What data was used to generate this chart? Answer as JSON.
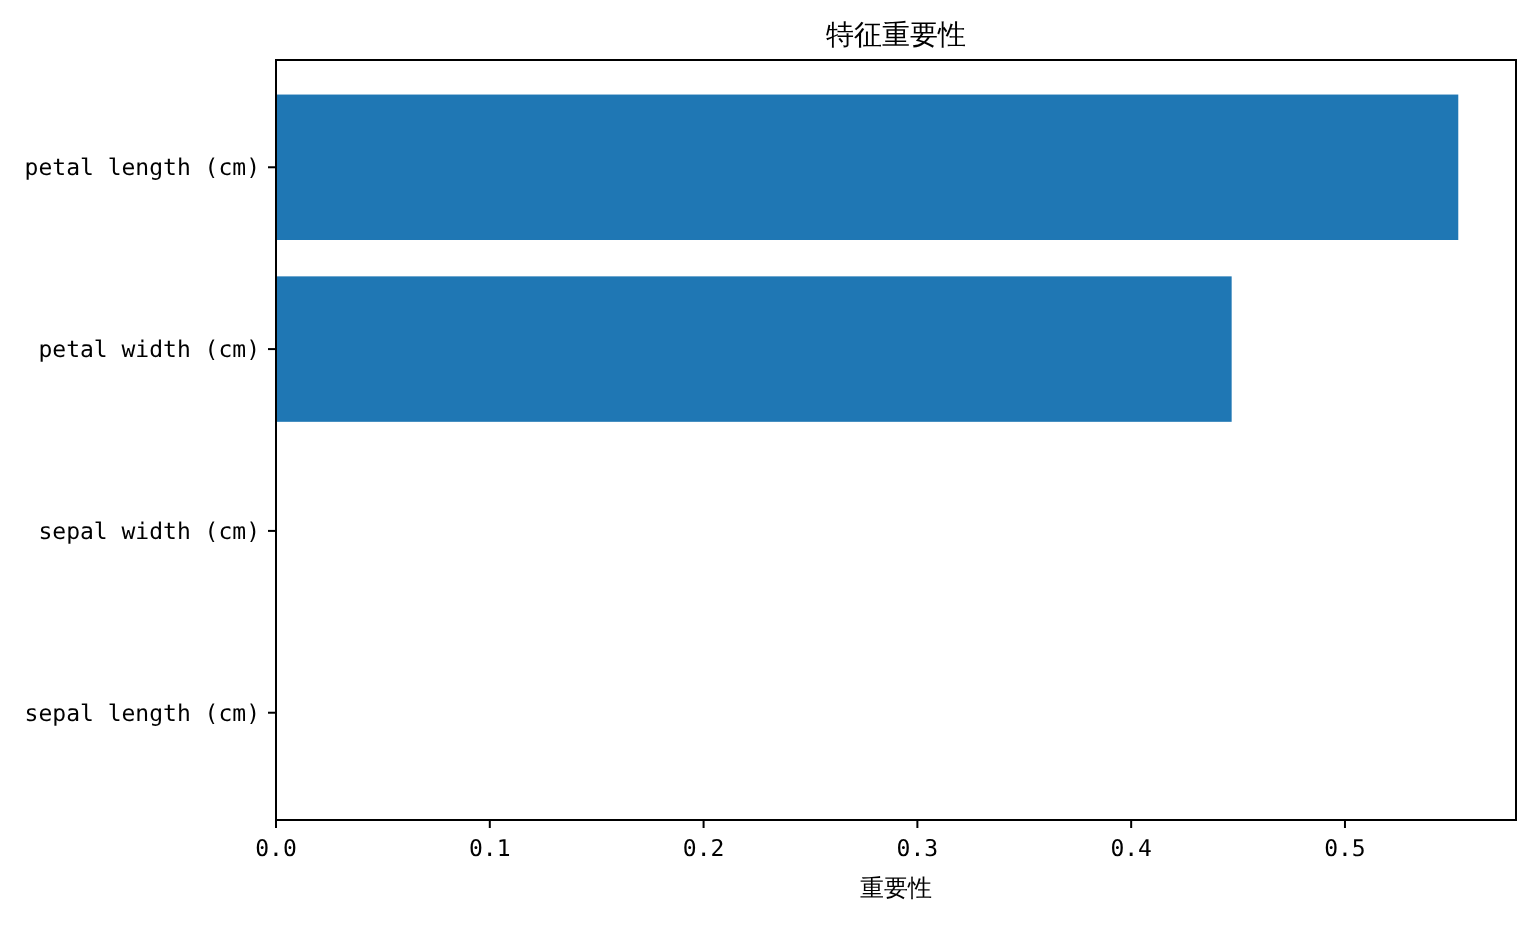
{
  "chart_data": {
    "type": "bar",
    "orientation": "horizontal",
    "title": "特征重要性",
    "xlabel": "重要性",
    "categories": [
      "petal length (cm)",
      "petal width (cm)",
      "sepal width (cm)",
      "sepal length (cm)"
    ],
    "values": [
      0.553,
      0.447,
      0,
      0
    ],
    "color": "#1f77b4",
    "xlim": [
      0,
      0.58
    ],
    "xticks": [
      {
        "value": 0,
        "label": "0.0"
      },
      0.1,
      0.2,
      0.3,
      0.4,
      0.5
    ],
    "grid": false
  }
}
